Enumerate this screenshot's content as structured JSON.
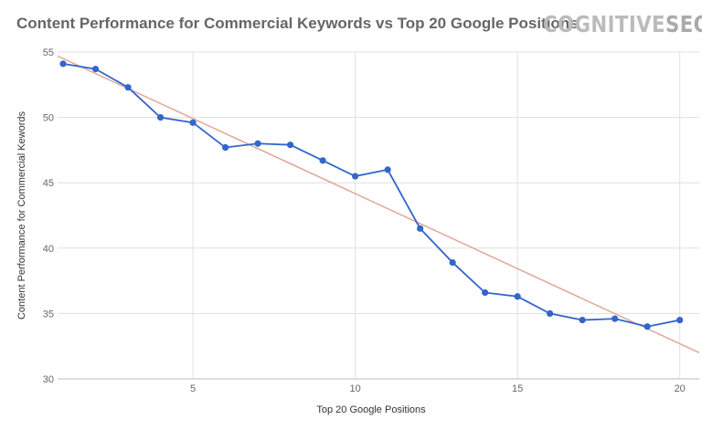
{
  "header": {
    "title": "Content Performance for Commercial Keywords vs Top 20 Google Positions",
    "logo_text": "COGNITIVESEO"
  },
  "chart_data": {
    "type": "line",
    "title": "Content Performance for Commercial Keywords vs Top 20 Google Positions",
    "xlabel": "Top 20 Google Positions",
    "ylabel": "Content Performance for Commercial Kewords",
    "xlim": [
      0.83,
      20.6
    ],
    "ylim": [
      30,
      55
    ],
    "xticks": [
      5,
      10,
      15,
      20
    ],
    "yticks": [
      30,
      35,
      40,
      45,
      50,
      55
    ],
    "grid": true,
    "x": [
      1,
      2,
      3,
      4,
      5,
      6,
      7,
      8,
      9,
      10,
      11,
      12,
      13,
      14,
      15,
      16,
      17,
      18,
      19,
      20
    ],
    "series": [
      {
        "values": [
          54.1,
          53.7,
          52.3,
          50.0,
          49.6,
          47.7,
          48.0,
          47.9,
          46.7,
          45.5,
          46.0,
          41.5,
          38.9,
          36.6,
          36.3,
          35.0,
          34.5,
          34.6,
          34.0,
          34.5
        ],
        "color": "#3366cc"
      }
    ],
    "trendline": {
      "x": [
        0.83,
        20.6
      ],
      "y": [
        54.7,
        32.0
      ],
      "color": "#e0a898"
    }
  }
}
